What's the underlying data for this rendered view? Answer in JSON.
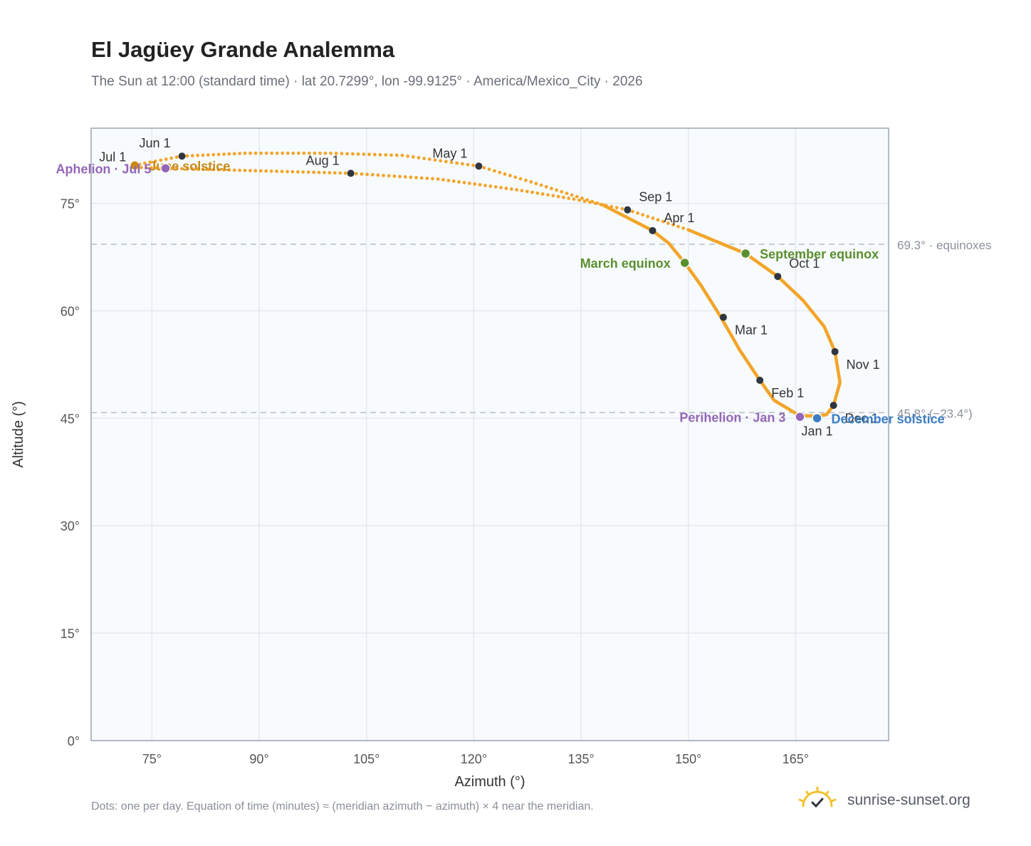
{
  "title": "El Jagüey Grande Analemma",
  "subtitle": "The Sun at 12:00 (standard time) · lat 20.7299°, lon -99.9125° · America/Mexico_City · 2026",
  "footnote": "Dots: one per day. Equation of time (minutes) ≈ (meridian azimuth − azimuth) × 4 near the meridian.",
  "brand": "sunrise-sunset.org",
  "colors": {
    "curve": "#f2a52b",
    "monthDot": "#2f3640",
    "equinox": "#5a8f2e",
    "solsticeSummer": "#c98a16",
    "solsticeWinter": "#3b7dc4",
    "apsis": "#9466b8",
    "grid": "#e4e9ef",
    "plotBg": "#f8fbfd",
    "refLine": "#b4bfc9"
  },
  "chart_data": {
    "type": "scatter",
    "xlabel": "Azimuth (°)",
    "ylabel": "Altitude (°)",
    "xlim": [
      66.5,
      178
    ],
    "ylim": [
      0,
      85.5
    ],
    "xticks": [
      75,
      90,
      105,
      120,
      135,
      150,
      165
    ],
    "yticks": [
      0,
      15,
      30,
      45,
      60,
      75
    ],
    "xtick_labels": [
      "75°",
      "90°",
      "105°",
      "120°",
      "135°",
      "150°",
      "165°"
    ],
    "ytick_labels": [
      "0°",
      "15°",
      "30°",
      "45°",
      "60°",
      "75°"
    ],
    "grid": true,
    "reference_lines": [
      {
        "y": 69.3,
        "label": "69.3° · equinoxes"
      },
      {
        "y": 45.8,
        "label": "45.8° (−23.4°)"
      }
    ],
    "analemma_path": [
      {
        "az": 167.8,
        "alt": 45.3
      },
      {
        "az": 165.5,
        "alt": 45.4
      },
      {
        "az": 162.0,
        "alt": 47.5
      },
      {
        "az": 160.0,
        "alt": 50.3
      },
      {
        "az": 157.2,
        "alt": 54.5
      },
      {
        "az": 154.5,
        "alt": 59.2
      },
      {
        "az": 151.8,
        "alt": 63.5
      },
      {
        "az": 149.5,
        "alt": 66.7
      },
      {
        "az": 147.3,
        "alt": 69.4
      },
      {
        "az": 145.0,
        "alt": 71.2
      },
      {
        "az": 138.0,
        "alt": 74.8
      },
      {
        "az": 128.0,
        "alt": 78.0
      },
      {
        "az": 120.7,
        "alt": 80.2
      },
      {
        "az": 110.0,
        "alt": 81.7
      },
      {
        "az": 100.0,
        "alt": 82.0
      },
      {
        "az": 88.0,
        "alt": 82.0
      },
      {
        "az": 79.2,
        "alt": 81.6
      },
      {
        "az": 74.0,
        "alt": 80.6
      },
      {
        "az": 72.6,
        "alt": 80.3
      },
      {
        "az": 73.5,
        "alt": 80.0
      },
      {
        "az": 77.0,
        "alt": 79.9
      },
      {
        "az": 88.0,
        "alt": 79.6
      },
      {
        "az": 102.8,
        "alt": 79.2
      },
      {
        "az": 115.0,
        "alt": 78.4
      },
      {
        "az": 126.0,
        "alt": 76.9
      },
      {
        "az": 134.0,
        "alt": 75.6
      },
      {
        "az": 141.5,
        "alt": 74.1
      },
      {
        "az": 150.0,
        "alt": 71.3
      },
      {
        "az": 158.0,
        "alt": 68.0
      },
      {
        "az": 162.5,
        "alt": 64.8
      },
      {
        "az": 166.0,
        "alt": 61.5
      },
      {
        "az": 169.0,
        "alt": 57.8
      },
      {
        "az": 170.5,
        "alt": 54.3
      },
      {
        "az": 171.2,
        "alt": 50.0
      },
      {
        "az": 170.3,
        "alt": 46.8
      },
      {
        "az": 169.3,
        "alt": 45.5
      },
      {
        "az": 167.8,
        "alt": 45.3
      }
    ],
    "dense_segments": [
      {
        "from": 0,
        "to": 10
      },
      {
        "from": 27,
        "to": 36
      }
    ],
    "month_markers": [
      {
        "label": "Jan 1",
        "az": 167.8,
        "alt": 45.0,
        "anchor": "below"
      },
      {
        "label": "Feb 1",
        "az": 160.0,
        "alt": 50.3,
        "anchor": "below-right"
      },
      {
        "label": "Mar 1",
        "az": 154.9,
        "alt": 59.1,
        "anchor": "below-right"
      },
      {
        "label": "Apr 1",
        "az": 145.0,
        "alt": 71.2,
        "anchor": "above-right"
      },
      {
        "label": "May 1",
        "az": 120.7,
        "alt": 80.2,
        "anchor": "above-left"
      },
      {
        "label": "Jun 1",
        "az": 79.2,
        "alt": 81.6,
        "anchor": "above-left"
      },
      {
        "label": "Jul 1",
        "az": 72.6,
        "alt": 80.3,
        "anchor": "left-above"
      },
      {
        "label": "Aug 1",
        "az": 102.8,
        "alt": 79.2,
        "anchor": "above-left"
      },
      {
        "label": "Sep 1",
        "az": 141.5,
        "alt": 74.1,
        "anchor": "above-right"
      },
      {
        "label": "Oct 1",
        "az": 162.5,
        "alt": 64.8,
        "anchor": "above-right"
      },
      {
        "label": "Nov 1",
        "az": 170.5,
        "alt": 54.3,
        "anchor": "below-right"
      },
      {
        "label": "Dec 1",
        "az": 170.3,
        "alt": 46.8,
        "anchor": "below-right"
      }
    ],
    "events": [
      {
        "label": "March equinox",
        "az": 149.5,
        "alt": 66.7,
        "color": "equinox",
        "side": "left"
      },
      {
        "label": "September equinox",
        "az": 158.0,
        "alt": 68.0,
        "color": "equinox",
        "side": "right"
      },
      {
        "label": "June solstice",
        "az": 72.6,
        "alt": 80.3,
        "color": "solsticeSummer",
        "side": "right"
      },
      {
        "label": "December solstice",
        "az": 168.0,
        "alt": 45.0,
        "color": "solsticeWinter",
        "side": "right"
      },
      {
        "label": "Aphelion · Jul 5",
        "az": 76.9,
        "alt": 79.9,
        "color": "apsis",
        "side": "left"
      },
      {
        "label": "Perihelion · Jan 3",
        "az": 165.6,
        "alt": 45.2,
        "color": "apsis",
        "side": "left"
      }
    ]
  }
}
